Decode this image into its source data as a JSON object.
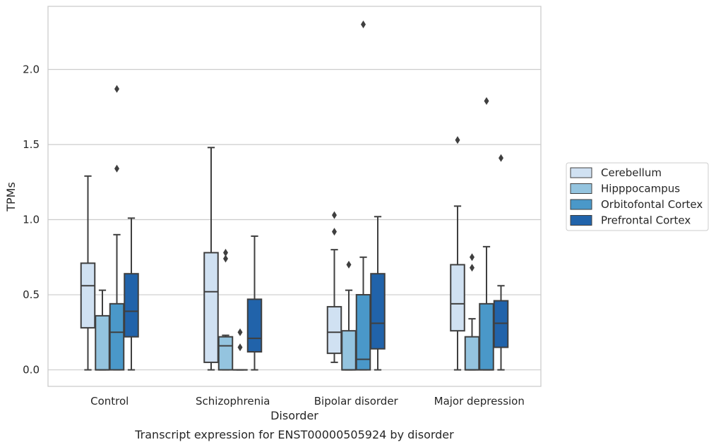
{
  "chart_data": {
    "type": "box",
    "caption": "Transcript expression for ENST00000505924 by disorder",
    "xlabel": "Disorder",
    "ylabel": "TPMs",
    "ylim": [
      -0.11,
      2.42
    ],
    "yticks": [
      0.0,
      0.5,
      1.0,
      1.5,
      2.0
    ],
    "ytick_labels": [
      "0.0",
      "0.5",
      "1.0",
      "1.5",
      "2.0"
    ],
    "grid": "horizontal",
    "legend_position": "right",
    "categories": [
      "Control",
      "Schizophrenia",
      "Bipolar disorder",
      "Major depression"
    ],
    "series": [
      {
        "name": "Cerebellum",
        "color": "#d0e1f2",
        "boxes": [
          {
            "whislo": 0.0,
            "q1": 0.28,
            "med": 0.56,
            "q3": 0.71,
            "whishi": 1.29,
            "fliers": []
          },
          {
            "whislo": 0.0,
            "q1": 0.05,
            "med": 0.52,
            "q3": 0.78,
            "whishi": 1.48,
            "fliers": []
          },
          {
            "whislo": 0.05,
            "q1": 0.11,
            "med": 0.25,
            "q3": 0.42,
            "whishi": 0.8,
            "fliers": [
              0.92,
              1.03
            ]
          },
          {
            "whislo": 0.0,
            "q1": 0.26,
            "med": 0.44,
            "q3": 0.7,
            "whishi": 1.09,
            "fliers": [
              1.53
            ]
          }
        ]
      },
      {
        "name": "Hipppocampus",
        "color": "#94c4df",
        "boxes": [
          {
            "whislo": 0.0,
            "q1": 0.0,
            "med": 0.0,
            "q3": 0.36,
            "whishi": 0.53,
            "fliers": []
          },
          {
            "whislo": 0.0,
            "q1": 0.0,
            "med": 0.16,
            "q3": 0.22,
            "whishi": 0.23,
            "fliers": [
              0.74,
              0.78
            ]
          },
          {
            "whislo": 0.0,
            "q1": 0.0,
            "med": 0.0,
            "q3": 0.26,
            "whishi": 0.53,
            "fliers": [
              0.7
            ]
          },
          {
            "whislo": 0.0,
            "q1": 0.0,
            "med": 0.0,
            "q3": 0.22,
            "whishi": 0.34,
            "fliers": [
              0.68,
              0.75
            ]
          }
        ]
      },
      {
        "name": "Orbitofontal Cortex",
        "color": "#4a98c9",
        "boxes": [
          {
            "whislo": 0.0,
            "q1": 0.0,
            "med": 0.25,
            "q3": 0.44,
            "whishi": 0.9,
            "fliers": [
              1.34,
              1.87
            ]
          },
          {
            "whislo": 0.0,
            "q1": 0.0,
            "med": 0.0,
            "q3": 0.0,
            "whishi": 0.0,
            "fliers": [
              0.15,
              0.25
            ]
          },
          {
            "whislo": 0.0,
            "q1": 0.0,
            "med": 0.07,
            "q3": 0.5,
            "whishi": 0.75,
            "fliers": [
              2.3
            ]
          },
          {
            "whislo": 0.0,
            "q1": 0.0,
            "med": 0.0,
            "q3": 0.44,
            "whishi": 0.82,
            "fliers": [
              1.79
            ]
          }
        ]
      },
      {
        "name": "Prefrontal Cortex",
        "color": "#2163aa",
        "boxes": [
          {
            "whislo": 0.0,
            "q1": 0.22,
            "med": 0.39,
            "q3": 0.64,
            "whishi": 1.01,
            "fliers": []
          },
          {
            "whislo": 0.0,
            "q1": 0.12,
            "med": 0.21,
            "q3": 0.47,
            "whishi": 0.89,
            "fliers": []
          },
          {
            "whislo": 0.0,
            "q1": 0.14,
            "med": 0.31,
            "q3": 0.64,
            "whishi": 1.02,
            "fliers": []
          },
          {
            "whislo": 0.0,
            "q1": 0.15,
            "med": 0.31,
            "q3": 0.46,
            "whishi": 0.56,
            "fliers": [
              1.41
            ]
          }
        ]
      }
    ]
  }
}
